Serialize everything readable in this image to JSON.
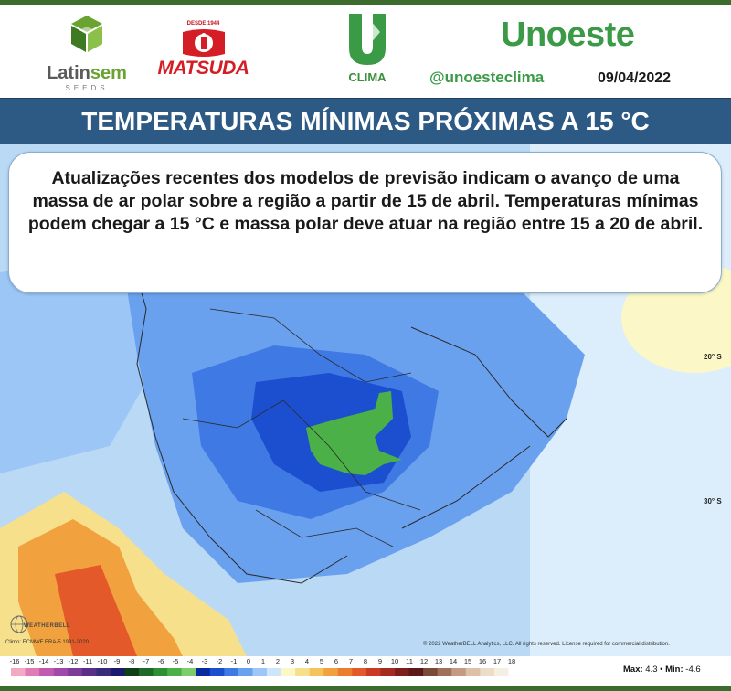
{
  "header": {
    "latinsem": {
      "name_a": "Latin",
      "name_b": "sem",
      "sub": "SEEDS"
    },
    "matsuda": {
      "tagline": "DESDE 1944",
      "name": "MATSUDA"
    },
    "uclima": {
      "label": "CLIMA"
    },
    "unoeste": "Unoeste",
    "handle": "@unoesteclima",
    "date": "09/04/2022"
  },
  "title": "TEMPERATURAS MÍNIMAS PRÓXIMAS A 15 °C",
  "info": {
    "text": "Atualizações recentes dos modelos de previsão indicam o avanço de uma massa de ar polar sobre a região a partir de 15 de abril. Temperaturas mínimas podem chegar a 15 °C e massa polar deve atuar na região entre 15 a 20 de abril."
  },
  "map": {
    "lat_labels": [
      "20° S",
      "30° S"
    ],
    "climo": "Climo: ECMWF ERA-5 1991-2020",
    "copyright": "© 2022 WeatherBELL Analytics, LLC. All rights reserved. License required for commercial distribution.",
    "weatherbell": "WEATHERBELL"
  },
  "legend": {
    "ticks": [
      "-16",
      "-15",
      "-14",
      "-13",
      "-12",
      "-11",
      "-10",
      "-9",
      "-8",
      "-7",
      "-6",
      "-5",
      "-4",
      "-3",
      "-2",
      "-1",
      "0",
      "1",
      "2",
      "3",
      "4",
      "5",
      "6",
      "7",
      "8",
      "9",
      "10",
      "11",
      "12",
      "13",
      "14",
      "15",
      "16",
      "17",
      "18"
    ],
    "max_label": "Max:",
    "max_value": "4.3",
    "sep": "•",
    "min_label": "Min:",
    "min_value": "-4.6",
    "colors": [
      "#f3a8c4",
      "#e07bb5",
      "#c25bb0",
      "#9f4aa8",
      "#7d3c9a",
      "#5a2f8a",
      "#3a2a7a",
      "#1a1a6e",
      "#0e3f16",
      "#1d6a2a",
      "#2f8f35",
      "#4bb048",
      "#7fcc6a",
      "#0a2aa0",
      "#1c4fd0",
      "#3f79e4",
      "#6aa1ee",
      "#9cc6f6",
      "#cfe5fb",
      "#fbf7c6",
      "#f7e08c",
      "#f5c25e",
      "#f1a13e",
      "#ec7c2e",
      "#e3592a",
      "#c93a26",
      "#a52a22",
      "#7e1f1d",
      "#5a1a1a",
      "#7a4a3a",
      "#a0705a",
      "#c49a80",
      "#ddc0a8",
      "#ecdcc8",
      "#f5eee2",
      "#ffffff"
    ]
  }
}
